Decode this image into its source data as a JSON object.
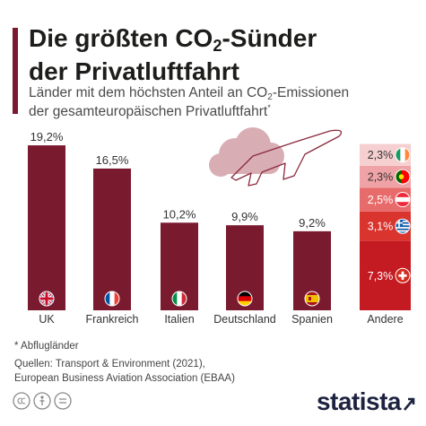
{
  "header": {
    "title_line1_pre": "Die größten CO",
    "title_sub": "2",
    "title_line1_post": "-Sünder",
    "title_line2": "der Privatluftfahrt",
    "subtitle_line1_pre": "Länder mit dem höchsten Anteil an CO",
    "subtitle_sub": "2",
    "subtitle_line1_post": "-Emissionen",
    "subtitle_line2": "der gesamteuropäischen Privatluftfahrt",
    "subtitle_mark": "*"
  },
  "chart_data": {
    "type": "bar",
    "categories": [
      "UK",
      "Frankreich",
      "Italien",
      "Deutschland",
      "Spanien"
    ],
    "values": [
      19.2,
      16.5,
      10.2,
      9.9,
      9.2
    ],
    "value_labels": [
      "19,2%",
      "16,5%",
      "10,2%",
      "9,9%",
      "9,2%"
    ],
    "flag_icons": [
      "uk-flag-icon",
      "france-flag-icon",
      "italy-flag-icon",
      "germany-flag-icon",
      "spain-flag-icon"
    ],
    "stacked": {
      "category": "Andere",
      "segments": [
        {
          "value": 7.3,
          "label": "7,3%",
          "color": "#c41a22",
          "icon": "switzerland-flag-icon"
        },
        {
          "value": 3.1,
          "label": "3,1%",
          "color": "#d9342e",
          "icon": "greece-flag-icon"
        },
        {
          "value": 2.5,
          "label": "2,5%",
          "color": "#e86b6b",
          "icon": "austria-flag-icon"
        },
        {
          "value": 2.3,
          "label": "2,3%",
          "color": "#f0a3a6",
          "icon": "portugal-flag-icon"
        },
        {
          "value": 2.3,
          "label": "2,3%",
          "color": "#f6cfd0",
          "icon": "ireland-flag-icon"
        }
      ]
    },
    "bar_color": "#7a1a2e",
    "grid": false,
    "legend": "none"
  },
  "footer": {
    "note": "* Abflugländer",
    "source_line1": "Quellen: Transport & Environment (2021),",
    "source_line2": "European Business Aviation Association (EBAA)",
    "logo": "statista"
  }
}
